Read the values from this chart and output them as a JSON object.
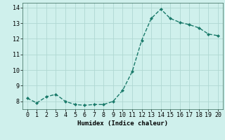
{
  "x": [
    0,
    1,
    2,
    3,
    4,
    5,
    6,
    7,
    8,
    9,
    10,
    11,
    12,
    13,
    14,
    15,
    16,
    17,
    18,
    19,
    20
  ],
  "y": [
    8.2,
    7.9,
    8.3,
    8.45,
    8.0,
    7.8,
    7.75,
    7.8,
    7.8,
    8.0,
    8.7,
    9.9,
    11.9,
    13.3,
    13.9,
    13.3,
    13.05,
    12.9,
    12.7,
    12.3,
    12.2
  ],
  "line_color": "#1a7a6a",
  "marker": "D",
  "marker_size": 2.0,
  "linewidth": 1.0,
  "xlabel": "Humidex (Indice chaleur)",
  "xlabel_fontsize": 6.5,
  "ylim": [
    7.5,
    14.3
  ],
  "xlim": [
    -0.5,
    20.5
  ],
  "yticks": [
    8,
    9,
    10,
    11,
    12,
    13,
    14
  ],
  "xticks": [
    0,
    1,
    2,
    3,
    4,
    5,
    6,
    7,
    8,
    9,
    10,
    11,
    12,
    13,
    14,
    15,
    16,
    17,
    18,
    19,
    20
  ],
  "bg_color": "#cff0ec",
  "grid_color": "#afd8d2",
  "tick_fontsize": 6.0,
  "linestyle": "--"
}
